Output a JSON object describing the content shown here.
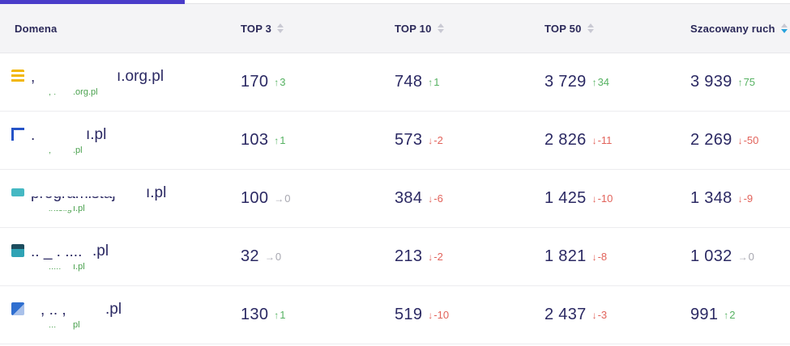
{
  "colors": {
    "accent_tab": "#4a3cc9",
    "header_text": "#2a2858",
    "value_text": "#2b2963",
    "positive": "#56b262",
    "negative": "#e2635b",
    "neutral": "#a7a7b0",
    "sub_link_green": "#4aa14e",
    "active_sort_arrow": "#29a3dc",
    "header_bg": "#f4f4f6"
  },
  "header": {
    "columns": [
      {
        "id": "domena",
        "label": "Domena",
        "sortable": false,
        "sort": "none"
      },
      {
        "id": "top3",
        "label": "TOP 3",
        "sortable": true,
        "sort": "none"
      },
      {
        "id": "top10",
        "label": "TOP 10",
        "sortable": true,
        "sort": "none"
      },
      {
        "id": "top50",
        "label": "TOP 50",
        "sortable": true,
        "sort": "none"
      },
      {
        "id": "szacowany-ruch",
        "label": "Szacowany ruch",
        "sortable": true,
        "sort": "desc"
      }
    ]
  },
  "rows": [
    {
      "domain": {
        "main_fragment": "  ,",
        "main_visible": "ı.org.pl",
        "sub_fragment": ", .",
        "sub_visible": ".org.pl",
        "favicon": "yellow-stripes"
      },
      "metrics": [
        {
          "value": "170",
          "delta": "3",
          "dir": "up"
        },
        {
          "value": "748",
          "delta": "1",
          "dir": "up"
        },
        {
          "value": "3 729",
          "delta": "34",
          "dir": "up"
        },
        {
          "value": "3 939",
          "delta": "75",
          "dir": "up"
        }
      ]
    },
    {
      "domain": {
        "main_fragment": " . \"",
        "main_visible": "ı.pl",
        "sub_fragment": " ,",
        "sub_visible": ".pl",
        "favicon": "blue-bracket"
      },
      "metrics": [
        {
          "value": "103",
          "delta": "1",
          "dir": "up"
        },
        {
          "value": "573",
          "delta": "-2",
          "dir": "down"
        },
        {
          "value": "2 826",
          "delta": "-11",
          "dir": "down"
        },
        {
          "value": "2 269",
          "delta": "-50",
          "dir": "down"
        }
      ]
    },
    {
      "domain": {
        "main_fragment": "programistaj",
        "main_visible": "ı.pl",
        "sub_fragment": "inteligentn",
        "sub_visible": "ı.pl",
        "favicon": "teal-square"
      },
      "metrics": [
        {
          "value": "100",
          "delta": "0",
          "dir": "zero"
        },
        {
          "value": "384",
          "delta": "-6",
          "dir": "down"
        },
        {
          "value": "1 425",
          "delta": "-10",
          "dir": "down"
        },
        {
          "value": "1 348",
          "delta": "-9",
          "dir": "down"
        }
      ]
    },
    {
      "domain": {
        "main_fragment": ".. _ . ....",
        "main_visible": ".pl",
        "sub_fragment": ".....",
        "sub_visible": "ı.pl",
        "favicon": "teal-dark"
      },
      "metrics": [
        {
          "value": "32",
          "delta": "0",
          "dir": "zero"
        },
        {
          "value": "213",
          "delta": "-2",
          "dir": "down"
        },
        {
          "value": "1 821",
          "delta": "-8",
          "dir": "down"
        },
        {
          "value": "1 032",
          "delta": "0",
          "dir": "zero"
        }
      ]
    },
    {
      "domain": {
        "main_fragment": "\" ,  ..  ,",
        "main_visible": ".pl",
        "sub_fragment": "... \" -",
        "sub_visible": "pl",
        "favicon": "blue-flag"
      },
      "metrics": [
        {
          "value": "130",
          "delta": "1",
          "dir": "up"
        },
        {
          "value": "519",
          "delta": "-10",
          "dir": "down"
        },
        {
          "value": "2 437",
          "delta": "-3",
          "dir": "down"
        },
        {
          "value": "991",
          "delta": "2",
          "dir": "up"
        }
      ]
    }
  ]
}
